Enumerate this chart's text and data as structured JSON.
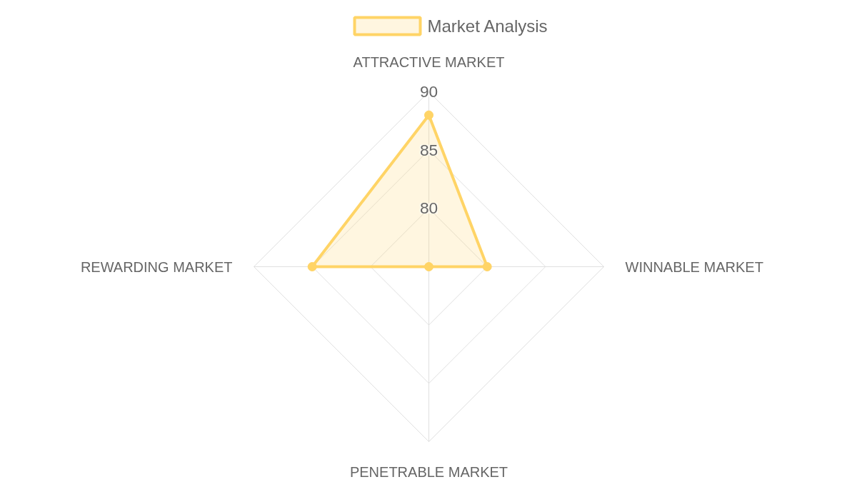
{
  "chart_data": {
    "type": "radar",
    "categories": [
      "ATTRACTIVE MARKET",
      "WINNABLE MARKET",
      "PENETRABLE MARKET",
      "REWARDING MARKET"
    ],
    "series": [
      {
        "name": "Market Analysis",
        "color": "#ffd466",
        "values": [
          88,
          80,
          75,
          85
        ]
      }
    ],
    "ylim": [
      75,
      90
    ],
    "yticks": [
      80,
      85,
      90
    ],
    "grid": true,
    "legend": "top",
    "marker": "circle",
    "line_style": "solid"
  }
}
